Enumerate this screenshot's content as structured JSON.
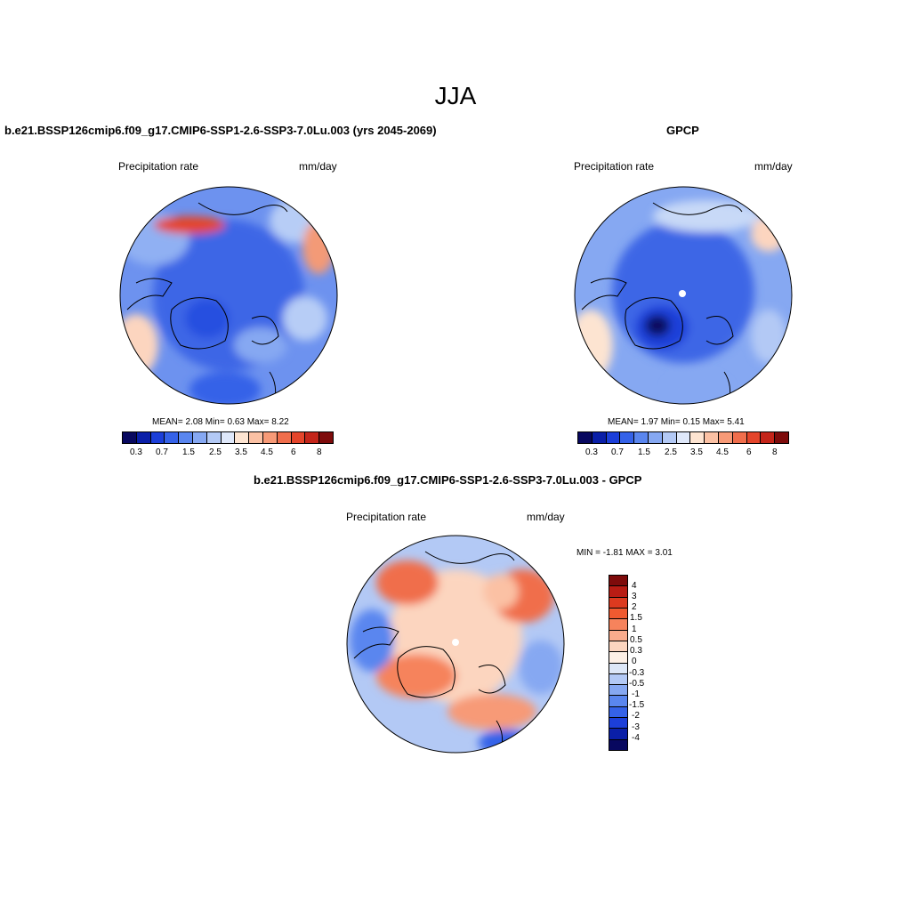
{
  "title": "JJA",
  "panels": [
    {
      "title": "b.e21.BSSP126cmip6.f09_g17.CMIP6-SSP1-2.6-SSP3-7.0Lu.003 (yrs 2045-2069)",
      "left_label": "Precipitation rate",
      "right_label": "mm/day",
      "stats": "MEAN=   2.08  Min=   0.63  Max=   8.22",
      "tick_labels": [
        "0.3",
        "0.7",
        "1.5",
        "2.5",
        "3.5",
        "4.5",
        "6",
        "8"
      ]
    },
    {
      "title": "GPCP",
      "left_label": "Precipitation rate",
      "right_label": "mm/day",
      "stats": "MEAN=   1.97  Min=   0.15  Max=   5.41",
      "tick_labels": [
        "0.3",
        "0.7",
        "1.5",
        "2.5",
        "3.5",
        "4.5",
        "6",
        "8"
      ]
    },
    {
      "title": "b.e21.BSSP126cmip6.f09_g17.CMIP6-SSP1-2.6-SSP3-7.0Lu.003 - GPCP",
      "left_label": "Precipitation rate",
      "right_label": "mm/day",
      "stats": "MIN =  -1.81 MAX =   3.01",
      "tick_labels": [
        "4",
        "3",
        "2",
        "1.5",
        "1",
        "0.5",
        "0.3",
        "0",
        "-0.3",
        "-0.5",
        "-1",
        "-1.5",
        "-2",
        "-3",
        "-4"
      ]
    }
  ],
  "colors": {
    "field_palette": [
      "#08085f",
      "#0a1fa8",
      "#1c3fd9",
      "#3562e8",
      "#5a86ef",
      "#86a8f2",
      "#b3c9f5",
      "#dfe8fa",
      "#fde4d1",
      "#fbc1a4",
      "#f79a77",
      "#f06e4c",
      "#e4452b",
      "#c4251a",
      "#7e0b0b"
    ],
    "diff_palette": [
      "#7e0b0b",
      "#b81c14",
      "#dc3a1f",
      "#f05a30",
      "#f6835c",
      "#f9ab8c",
      "#fcd5bf",
      "#dde7f7",
      "#b3c9f5",
      "#86a8f2",
      "#5a86ef",
      "#3562e8",
      "#1c3fd9",
      "#0a1fa8",
      "#08085f"
    ]
  }
}
